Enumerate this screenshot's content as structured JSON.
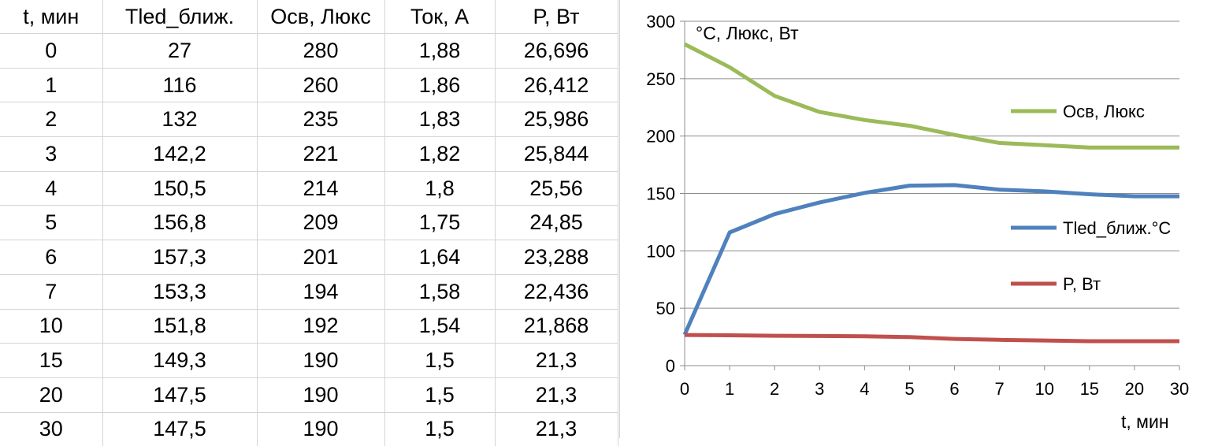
{
  "table": {
    "headers": [
      "t, мин",
      "Tled_ближ.",
      "Осв, Люкс",
      "Ток, А",
      "P, Вт"
    ],
    "rows": [
      [
        "0",
        "27",
        "280",
        "1,88",
        "26,696"
      ],
      [
        "1",
        "116",
        "260",
        "1,86",
        "26,412"
      ],
      [
        "2",
        "132",
        "235",
        "1,83",
        "25,986"
      ],
      [
        "3",
        "142,2",
        "221",
        "1,82",
        "25,844"
      ],
      [
        "4",
        "150,5",
        "214",
        "1,8",
        "25,56"
      ],
      [
        "5",
        "156,8",
        "209",
        "1,75",
        "24,85"
      ],
      [
        "6",
        "157,3",
        "201",
        "1,64",
        "23,288"
      ],
      [
        "7",
        "153,3",
        "194",
        "1,58",
        "22,436"
      ],
      [
        "10",
        "151,8",
        "192",
        "1,54",
        "21,868"
      ],
      [
        "15",
        "149,3",
        "190",
        "1,5",
        "21,3"
      ],
      [
        "20",
        "147,5",
        "190",
        "1,5",
        "21,3"
      ],
      [
        "30",
        "147,5",
        "190",
        "1,5",
        "21,3"
      ]
    ]
  },
  "chart_data": {
    "type": "line",
    "title": "",
    "xlabel": "t, мин",
    "ylabel": "°C, Люкс, Вт",
    "categories": [
      "0",
      "1",
      "2",
      "3",
      "4",
      "5",
      "6",
      "7",
      "10",
      "15",
      "20",
      "30"
    ],
    "ylim": [
      0,
      300
    ],
    "yticks": [
      "0",
      "50",
      "100",
      "150",
      "200",
      "250",
      "300"
    ],
    "grid": true,
    "legend_position": "right",
    "series": [
      {
        "name": "Осв, Люкс",
        "color": "#9bbb59",
        "values": [
          280,
          260,
          235,
          221,
          214,
          209,
          201,
          194,
          192,
          190,
          190,
          190
        ]
      },
      {
        "name": "Tled_ближ.°C",
        "color": "#4f81bd",
        "values": [
          27,
          116,
          132,
          142.2,
          150.5,
          156.8,
          157.3,
          153.3,
          151.8,
          149.3,
          147.5,
          147.5
        ]
      },
      {
        "name": "P, Вт",
        "color": "#c0504d",
        "values": [
          26.696,
          26.412,
          25.986,
          25.844,
          25.56,
          24.85,
          23.288,
          22.436,
          21.868,
          21.3,
          21.3,
          21.3
        ]
      }
    ]
  }
}
